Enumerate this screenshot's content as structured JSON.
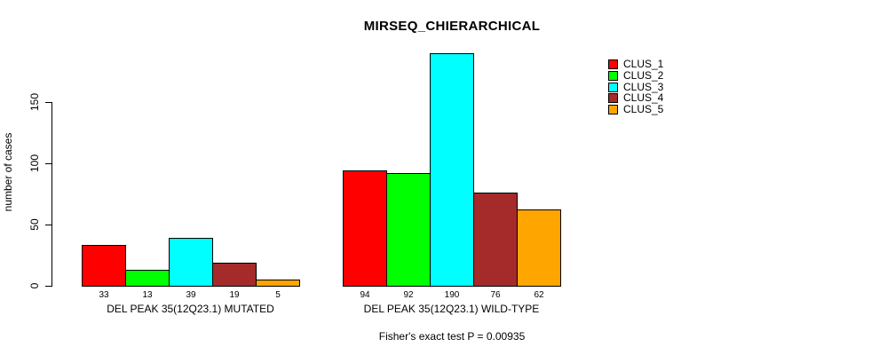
{
  "chart_data": {
    "type": "bar",
    "title": "MIRSEQ_CHIERARCHICAL",
    "ylabel": "number of cases",
    "xlabel": "",
    "yticks": [
      0,
      50,
      100,
      150
    ],
    "ylim": [
      0,
      190
    ],
    "grid": false,
    "legend_position": "top-right",
    "series": [
      {
        "name": "CLUS_1",
        "color": "#ff0000"
      },
      {
        "name": "CLUS_2",
        "color": "#00ff00"
      },
      {
        "name": "CLUS_3",
        "color": "#00ffff"
      },
      {
        "name": "CLUS_4",
        "color": "#a52a2a"
      },
      {
        "name": "CLUS_5",
        "color": "#ffa500"
      }
    ],
    "groups": [
      {
        "label": "DEL PEAK 35(12Q23.1) MUTATED",
        "values": [
          33,
          13,
          39,
          19,
          5
        ]
      },
      {
        "label": "DEL PEAK 35(12Q23.1) WILD-TYPE",
        "values": [
          94,
          92,
          190,
          76,
          62
        ]
      }
    ],
    "annotation": "Fisher's exact test P = 0.00935"
  }
}
